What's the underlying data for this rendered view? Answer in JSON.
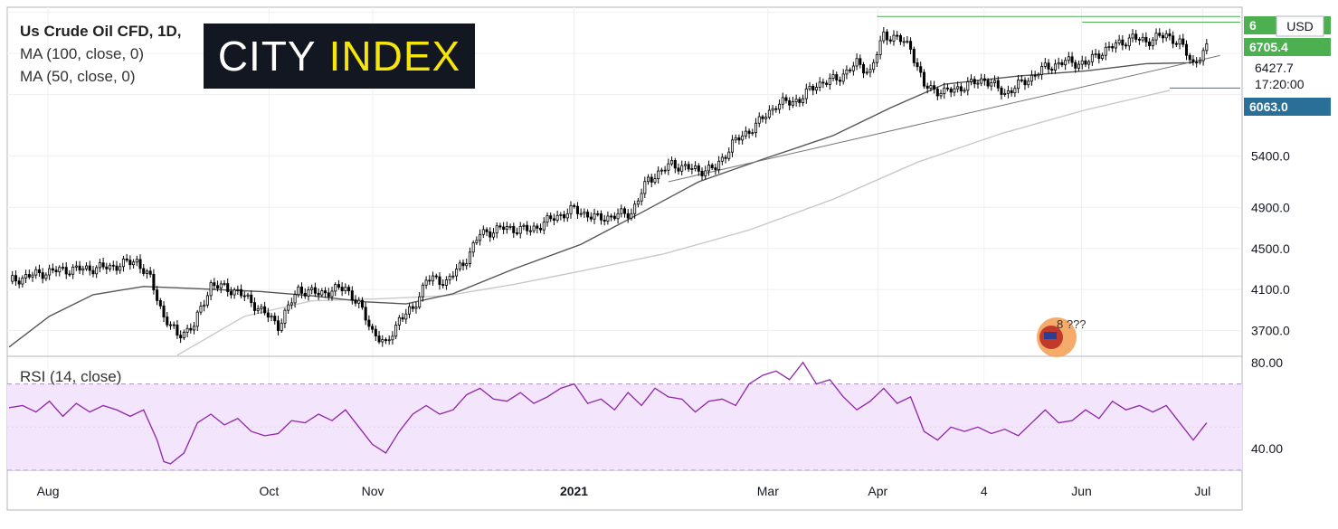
{
  "legend": {
    "title": "Us Crude Oil CFD, 1D,",
    "ma100": "MA (100, close, 0)",
    "ma50": "MA (50, close, 0)",
    "rsi": "RSI (14, close)"
  },
  "logo": {
    "part1": "CITY",
    "part2": "INDEX"
  },
  "price_tags": {
    "currency": "USD",
    "top": "6",
    "resistance": "6705.4",
    "last": "6427.7",
    "countdown": "17:20:00",
    "support": "6063.0"
  },
  "event_badge": {
    "label": "8 ???"
  },
  "colors": {
    "up": "#ffffff",
    "down": "#000000",
    "ma50": "#555555",
    "ma100": "#c9c9c9",
    "rsi": "#8e24aa",
    "rsi_band": "#f3e5fb",
    "level_green": "#4caf50",
    "level_teal": "#2f7e86"
  },
  "chart_data": {
    "type": "candlestick",
    "price_axis": {
      "ticks": [
        5400,
        4900,
        4500,
        4100,
        3700
      ],
      "labels": [
        "5400.0",
        "4900.0",
        "4500.0",
        "4100.0",
        "3700.0"
      ],
      "ylim": [
        3450,
        6850
      ]
    },
    "rsi_axis": {
      "ticks": [
        80,
        40
      ],
      "labels": [
        "80.00",
        "40.00"
      ],
      "ylim": [
        30,
        82
      ],
      "band": [
        30,
        70
      ]
    },
    "x_labels": [
      "Aug",
      "Oct",
      "Nov",
      "2021",
      "Mar",
      "Apr",
      "4",
      "Jun",
      "Jul"
    ],
    "x_label_pos": [
      0.033,
      0.212,
      0.296,
      0.459,
      0.616,
      0.705,
      0.791,
      0.87,
      0.968
    ],
    "anchors": [
      [
        0,
        4180
      ],
      [
        8,
        4250
      ],
      [
        15,
        4290
      ],
      [
        22,
        4300
      ],
      [
        30,
        4320
      ],
      [
        38,
        4380
      ],
      [
        42,
        4200
      ],
      [
        46,
        3840
      ],
      [
        50,
        3650
      ],
      [
        55,
        3750
      ],
      [
        60,
        4150
      ],
      [
        68,
        4080
      ],
      [
        75,
        3900
      ],
      [
        80,
        3750
      ],
      [
        86,
        4100
      ],
      [
        92,
        4060
      ],
      [
        100,
        4120
      ],
      [
        104,
        3950
      ],
      [
        108,
        3700
      ],
      [
        112,
        3550
      ],
      [
        116,
        3820
      ],
      [
        120,
        3900
      ],
      [
        124,
        4200
      ],
      [
        130,
        4180
      ],
      [
        135,
        4350
      ],
      [
        140,
        4640
      ],
      [
        147,
        4700
      ],
      [
        155,
        4680
      ],
      [
        162,
        4800
      ],
      [
        168,
        4880
      ],
      [
        175,
        4790
      ],
      [
        185,
        4850
      ],
      [
        190,
        5170
      ],
      [
        197,
        5320
      ],
      [
        205,
        5260
      ],
      [
        210,
        5280
      ],
      [
        215,
        5520
      ],
      [
        222,
        5700
      ],
      [
        228,
        5900
      ],
      [
        235,
        5950
      ],
      [
        240,
        6100
      ],
      [
        246,
        6150
      ],
      [
        252,
        6300
      ],
      [
        256,
        6220
      ],
      [
        260,
        6580
      ],
      [
        264,
        6550
      ],
      [
        268,
        6460
      ],
      [
        272,
        6080
      ],
      [
        278,
        6020
      ],
      [
        284,
        6080
      ],
      [
        290,
        6150
      ],
      [
        296,
        6010
      ],
      [
        302,
        6130
      ],
      [
        308,
        6260
      ],
      [
        314,
        6320
      ],
      [
        320,
        6300
      ],
      [
        324,
        6400
      ],
      [
        330,
        6500
      ],
      [
        334,
        6550
      ],
      [
        338,
        6520
      ],
      [
        344,
        6580
      ],
      [
        348,
        6500
      ],
      [
        352,
        6300
      ],
      [
        356,
        6440
      ]
    ],
    "ma50": [
      [
        0,
        3540
      ],
      [
        12,
        3840
      ],
      [
        25,
        4050
      ],
      [
        40,
        4130
      ],
      [
        55,
        4110
      ],
      [
        75,
        4080
      ],
      [
        90,
        4040
      ],
      [
        106,
        3980
      ],
      [
        118,
        3960
      ],
      [
        132,
        4060
      ],
      [
        150,
        4300
      ],
      [
        170,
        4540
      ],
      [
        188,
        4850
      ],
      [
        205,
        5150
      ],
      [
        225,
        5380
      ],
      [
        245,
        5600
      ],
      [
        262,
        5870
      ],
      [
        278,
        6100
      ],
      [
        300,
        6180
      ],
      [
        320,
        6230
      ],
      [
        338,
        6300
      ],
      [
        352,
        6310
      ]
    ],
    "ma100": [
      [
        50,
        3460
      ],
      [
        70,
        3840
      ],
      [
        90,
        3990
      ],
      [
        110,
        4010
      ],
      [
        130,
        4040
      ],
      [
        150,
        4150
      ],
      [
        170,
        4280
      ],
      [
        195,
        4450
      ],
      [
        220,
        4680
      ],
      [
        245,
        4980
      ],
      [
        270,
        5340
      ],
      [
        295,
        5620
      ],
      [
        320,
        5850
      ],
      [
        345,
        6040
      ]
    ],
    "trendlines": {
      "rising": [
        [
          196,
          5150
        ],
        [
          360,
          6380
        ]
      ],
      "resistance_green": [
        [
          258,
          6760
        ],
        [
          366,
          6760
        ]
      ],
      "resistance_green2": [
        [
          319,
          6705
        ],
        [
          366,
          6705
        ]
      ],
      "support_teal": [
        [
          345,
          6063
        ],
        [
          366,
          6063
        ]
      ]
    },
    "rsi": [
      [
        0,
        59
      ],
      [
        4,
        60
      ],
      [
        8,
        57
      ],
      [
        12,
        62
      ],
      [
        16,
        55
      ],
      [
        20,
        61
      ],
      [
        24,
        57
      ],
      [
        28,
        60
      ],
      [
        32,
        58
      ],
      [
        36,
        55
      ],
      [
        40,
        58
      ],
      [
        44,
        44
      ],
      [
        46,
        34
      ],
      [
        48,
        33
      ],
      [
        52,
        38
      ],
      [
        56,
        52
      ],
      [
        60,
        56
      ],
      [
        64,
        51
      ],
      [
        68,
        54
      ],
      [
        72,
        48
      ],
      [
        76,
        46
      ],
      [
        80,
        47
      ],
      [
        84,
        53
      ],
      [
        88,
        52
      ],
      [
        92,
        56
      ],
      [
        96,
        53
      ],
      [
        100,
        58
      ],
      [
        104,
        50
      ],
      [
        108,
        42
      ],
      [
        112,
        38
      ],
      [
        116,
        48
      ],
      [
        120,
        56
      ],
      [
        124,
        60
      ],
      [
        128,
        56
      ],
      [
        132,
        58
      ],
      [
        136,
        65
      ],
      [
        140,
        68
      ],
      [
        144,
        63
      ],
      [
        148,
        62
      ],
      [
        152,
        66
      ],
      [
        156,
        61
      ],
      [
        160,
        64
      ],
      [
        164,
        68
      ],
      [
        168,
        70
      ],
      [
        172,
        61
      ],
      [
        176,
        63
      ],
      [
        180,
        58
      ],
      [
        184,
        66
      ],
      [
        188,
        60
      ],
      [
        192,
        68
      ],
      [
        196,
        64
      ],
      [
        200,
        63
      ],
      [
        204,
        57
      ],
      [
        208,
        62
      ],
      [
        212,
        63
      ],
      [
        216,
        60
      ],
      [
        220,
        70
      ],
      [
        224,
        74
      ],
      [
        228,
        76
      ],
      [
        232,
        72
      ],
      [
        236,
        80
      ],
      [
        240,
        70
      ],
      [
        244,
        72
      ],
      [
        248,
        64
      ],
      [
        252,
        58
      ],
      [
        256,
        62
      ],
      [
        260,
        68
      ],
      [
        264,
        61
      ],
      [
        268,
        64
      ],
      [
        272,
        48
      ],
      [
        276,
        44
      ],
      [
        280,
        50
      ],
      [
        284,
        48
      ],
      [
        288,
        50
      ],
      [
        292,
        47
      ],
      [
        296,
        49
      ],
      [
        300,
        46
      ],
      [
        304,
        52
      ],
      [
        308,
        58
      ],
      [
        312,
        52
      ],
      [
        316,
        53
      ],
      [
        320,
        58
      ],
      [
        324,
        54
      ],
      [
        328,
        62
      ],
      [
        332,
        58
      ],
      [
        336,
        60
      ],
      [
        340,
        57
      ],
      [
        344,
        60
      ],
      [
        348,
        52
      ],
      [
        352,
        44
      ],
      [
        356,
        52
      ]
    ]
  }
}
